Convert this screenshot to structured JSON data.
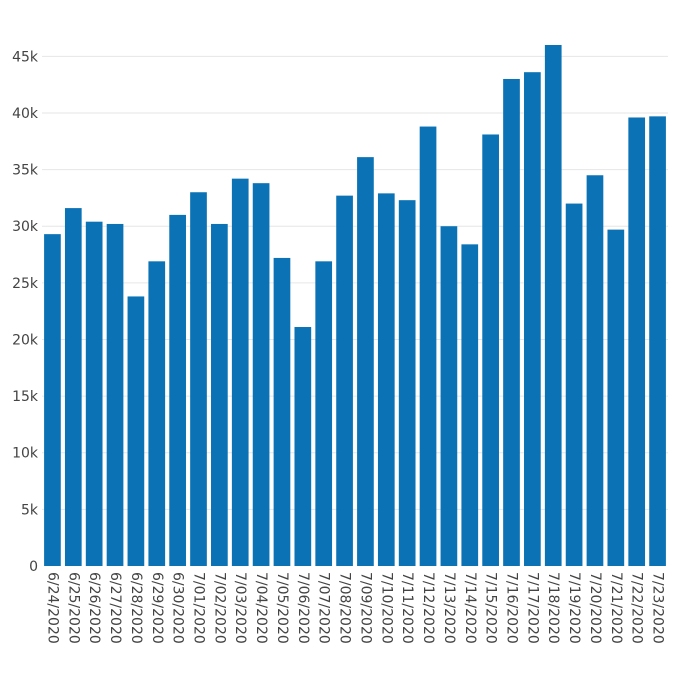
{
  "chart_data": {
    "type": "bar",
    "title": "",
    "xlabel": "",
    "ylabel": "",
    "categories": [
      "6/24/2020",
      "6/25/2020",
      "6/26/2020",
      "6/27/2020",
      "6/28/2020",
      "6/29/2020",
      "6/30/2020",
      "7/01/2020",
      "7/02/2020",
      "7/03/2020",
      "7/04/2020",
      "7/05/2020",
      "7/06/2020",
      "7/07/2020",
      "7/08/2020",
      "7/09/2020",
      "7/10/2020",
      "7/11/2020",
      "7/12/2020",
      "7/13/2020",
      "7/14/2020",
      "7/15/2020",
      "7/16/2020",
      "7/17/2020",
      "7/18/2020",
      "7/19/2020",
      "7/20/2020",
      "7/21/2020",
      "7/22/2020",
      "7/23/2020"
    ],
    "values": [
      29300,
      31600,
      30400,
      30200,
      23800,
      26900,
      31000,
      33000,
      30200,
      34200,
      33800,
      27200,
      21100,
      26900,
      32700,
      36100,
      32900,
      32300,
      38800,
      30000,
      28400,
      38100,
      43000,
      43600,
      46000,
      32000,
      34500,
      29700,
      39600,
      39700
    ],
    "ylim": [
      0,
      46000
    ],
    "yticks": [
      0,
      5000,
      10000,
      15000,
      20000,
      25000,
      30000,
      35000,
      40000,
      45000
    ],
    "ytick_labels": [
      "0",
      "5k",
      "10k",
      "15k",
      "20k",
      "25k",
      "30k",
      "35k",
      "40k",
      "45k"
    ],
    "grid": true,
    "bar_color": "#0b72b5",
    "grid_color": "#e6e6e6"
  }
}
